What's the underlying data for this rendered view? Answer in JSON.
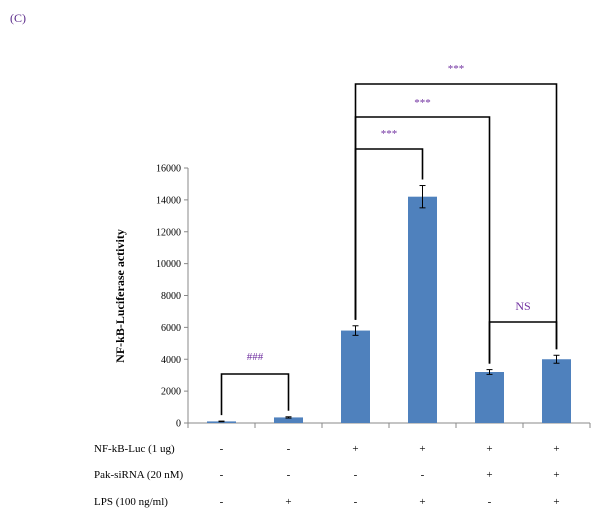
{
  "panel_label": "(C)",
  "colors": {
    "bar": "#4f81bd",
    "significance": "#7030a0",
    "axis": "#888888"
  },
  "chart_data": {
    "type": "bar",
    "title": "",
    "ylabel": "NF-kB-Luciferase activity",
    "ylim": [
      0,
      16000
    ],
    "yticks": [
      "0",
      "2000",
      "4000",
      "6000",
      "8000",
      "10000",
      "12000",
      "14000",
      "16000"
    ],
    "grid": false,
    "values": [
      100,
      350,
      5800,
      14200,
      3200,
      4000
    ],
    "errors": [
      20,
      40,
      300,
      700,
      150,
      250
    ],
    "conditions": [
      {
        "label": "NF-kB-Luc (1 ug)",
        "symbols": [
          "-",
          "-",
          "+",
          "+",
          "+",
          "+"
        ]
      },
      {
        "label": "Pak-siRNA (20 nM)",
        "symbols": [
          "-",
          "-",
          "-",
          "-",
          "+",
          "+"
        ]
      },
      {
        "label": "LPS (100 ng/ml)",
        "symbols": [
          "-",
          "+",
          "-",
          "+",
          "-",
          "+"
        ]
      }
    ],
    "annotations": [
      {
        "from": 0,
        "to": 1,
        "label": "###"
      },
      {
        "from": 2,
        "to": 3,
        "label": "***"
      },
      {
        "from": 2,
        "to": 4,
        "label": "***"
      },
      {
        "from": 2,
        "to": 5,
        "label": "***"
      },
      {
        "from": 4,
        "to": 5,
        "label": "NS"
      }
    ]
  }
}
